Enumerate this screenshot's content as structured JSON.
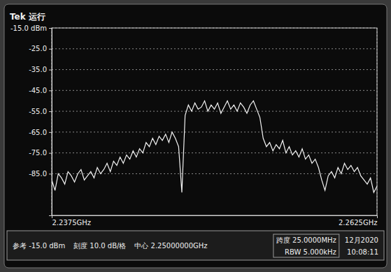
{
  "chart_data": {
    "type": "line",
    "title": "Tek 运行",
    "color": "#f2f2f2",
    "grid": true,
    "x": [
      2.2375,
      2.23775,
      2.238,
      2.23825,
      2.2385,
      2.23875,
      2.239,
      2.23925,
      2.2395,
      2.23975,
      2.24,
      2.24025,
      2.2405,
      2.24075,
      2.241,
      2.24125,
      2.2415,
      2.24175,
      2.242,
      2.24225,
      2.2425,
      2.24275,
      2.243,
      2.24325,
      2.2435,
      2.24375,
      2.244,
      2.24425,
      2.2445,
      2.24475,
      2.245,
      2.24525,
      2.2455,
      2.24575,
      2.246,
      2.24625,
      2.2465,
      2.24675,
      2.247,
      2.24725,
      2.2475,
      2.24775,
      2.248,
      2.24825,
      2.2485,
      2.24875,
      2.249,
      2.24925,
      2.2495,
      2.24975,
      2.25,
      2.25025,
      2.2505,
      2.25075,
      2.251,
      2.25125,
      2.2515,
      2.25175,
      2.252,
      2.25225,
      2.2525,
      2.25275,
      2.253,
      2.25325,
      2.2535,
      2.25375,
      2.254,
      2.25425,
      2.2545,
      2.25475,
      2.255,
      2.25525,
      2.2555,
      2.25575,
      2.256,
      2.25625,
      2.2565,
      2.25675,
      2.257,
      2.25725,
      2.2575,
      2.25775,
      2.258,
      2.25825,
      2.2585,
      2.25875,
      2.259,
      2.25925,
      2.2595,
      2.25975,
      2.26,
      2.26025,
      2.2605,
      2.26075,
      2.261,
      2.26125,
      2.2615,
      2.26175,
      2.262,
      2.26225,
      2.2625
    ],
    "values": [
      -88,
      -93,
      -85,
      -87,
      -90,
      -84,
      -86,
      -89,
      -85,
      -83,
      -88,
      -86,
      -84,
      -87,
      -82,
      -85,
      -83,
      -80,
      -84,
      -79,
      -81,
      -77,
      -80,
      -76,
      -78,
      -74,
      -77,
      -73,
      -75,
      -70,
      -72,
      -68,
      -71,
      -67,
      -69,
      -66,
      -70,
      -65,
      -68,
      -72,
      -94,
      -57,
      -52,
      -55,
      -51,
      -54,
      -53,
      -50,
      -55,
      -52,
      -54,
      -51,
      -56,
      -53,
      -50,
      -54,
      -52,
      -55,
      -51,
      -53,
      -56,
      -52,
      -50,
      -54,
      -58,
      -68,
      -72,
      -70,
      -74,
      -71,
      -73,
      -69,
      -75,
      -72,
      -76,
      -74,
      -77,
      -73,
      -78,
      -76,
      -80,
      -78,
      -82,
      -88,
      -93,
      -86,
      -84,
      -87,
      -82,
      -85,
      -80,
      -83,
      -81,
      -84,
      -82,
      -86,
      -88,
      -90,
      -87,
      -94,
      -91
    ],
    "xlim": [
      2.2375,
      2.2625
    ],
    "xticks": [
      {
        "value": 2.2375,
        "label": "2.2375GHz"
      },
      {
        "value": 2.2625,
        "label": "2.2625GHz"
      }
    ],
    "ylim": [
      -105,
      -15
    ],
    "yticks": [
      {
        "value": -15,
        "label": "-15.0 dBm"
      },
      {
        "value": -25,
        "label": "-25.0"
      },
      {
        "value": -35,
        "label": "-35.0"
      },
      {
        "value": -45,
        "label": "-45.0"
      },
      {
        "value": -55,
        "label": "-55.0"
      },
      {
        "value": -65,
        "label": "-65.0"
      },
      {
        "value": -75,
        "label": "-75.0"
      },
      {
        "value": -85,
        "label": "-85.0"
      }
    ],
    "annotations": [
      "参考 -15.0 dBm",
      "刻度 10.0 dB/格",
      "中心 2.25000000GHz",
      "跨度 25.0000MHz",
      "RBW 5.000kHz",
      "12月2020",
      "10:08:11"
    ]
  }
}
